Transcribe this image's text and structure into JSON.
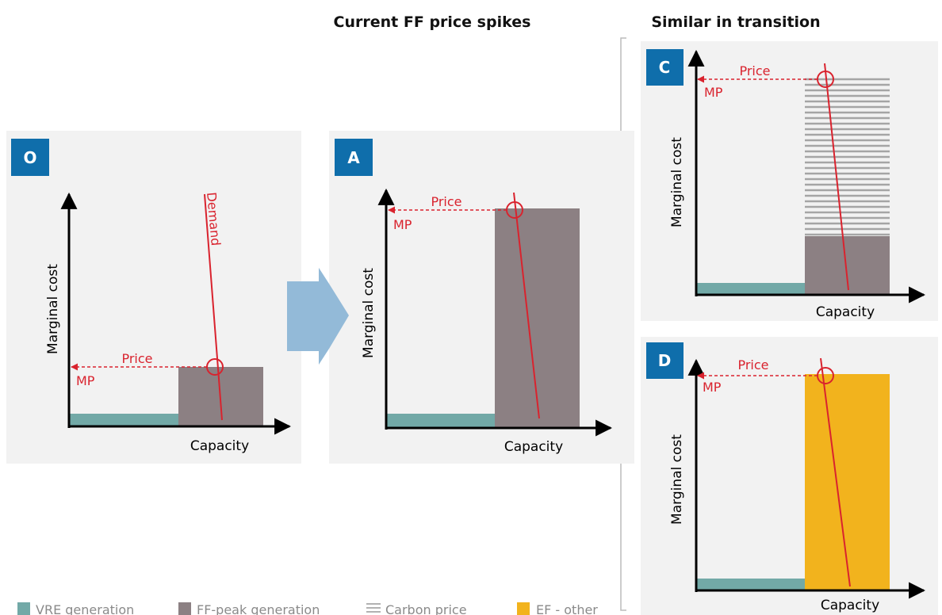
{
  "titles": [
    "Current FF price spikes",
    "Similar in transition"
  ],
  "panels": [
    {
      "badge": "O",
      "y_label": "Marginal cost",
      "x_label": "Capacity",
      "price": "Price",
      "mp": "MP",
      "demand": "Demand"
    },
    {
      "badge": "A",
      "y_label": "Marginal cost",
      "x_label": "Capacity",
      "price": "Price",
      "mp": "MP"
    },
    {
      "badge": "C",
      "y_label": "Marginal cost",
      "x_label": "Capacity",
      "price": "Price",
      "mp": "MP"
    },
    {
      "badge": "D",
      "y_label": "Marginal cost",
      "x_label": "Capacity",
      "price": "Price",
      "mp": "MP"
    }
  ],
  "legend": [
    "VRE generation",
    "FF-peak generation",
    "Carbon price",
    "EF - other"
  ]
}
